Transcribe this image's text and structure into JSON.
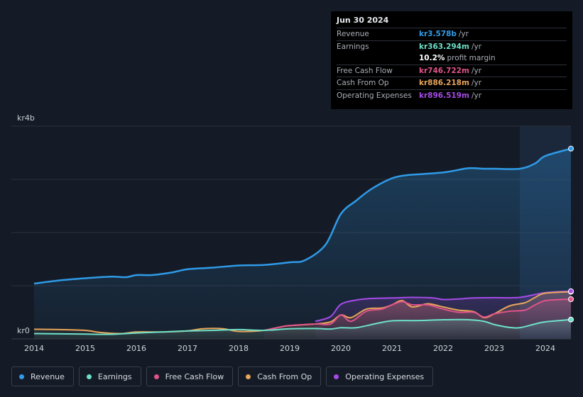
{
  "tooltip": {
    "date": "Jun 30 2024",
    "rows": [
      {
        "label": "Revenue",
        "value": "kr3.578b",
        "unit": "/yr",
        "color": "#2f9be8"
      },
      {
        "label": "Earnings",
        "value": "kr363.294m",
        "unit": "/yr",
        "color": "#6ee0c9"
      },
      {
        "label": "",
        "value": "10.2%",
        "unit": "profit margin",
        "color": "#ffffff"
      },
      {
        "label": "Free Cash Flow",
        "value": "kr746.722m",
        "unit": "/yr",
        "color": "#e0538a"
      },
      {
        "label": "Cash From Op",
        "value": "kr886.218m",
        "unit": "/yr",
        "color": "#e8a55a"
      },
      {
        "label": "Operating Expenses",
        "value": "kr896.519m",
        "unit": "/yr",
        "color": "#a64be8"
      }
    ]
  },
  "legend": [
    {
      "label": "Revenue",
      "color": "#2f9be8"
    },
    {
      "label": "Earnings",
      "color": "#6ee0c9"
    },
    {
      "label": "Free Cash Flow",
      "color": "#e0538a"
    },
    {
      "label": "Cash From Op",
      "color": "#e8a55a"
    },
    {
      "label": "Operating Expenses",
      "color": "#a64be8"
    }
  ],
  "chart_data": {
    "type": "line",
    "y_top_label": "kr4b",
    "y_bottom_label": "kr0",
    "ylim": [
      0,
      4000
    ],
    "xlim": [
      2014,
      2024.5
    ],
    "x_ticks": [
      "2014",
      "2015",
      "2016",
      "2017",
      "2018",
      "2019",
      "2020",
      "2021",
      "2022",
      "2023",
      "2024"
    ],
    "grid": true,
    "highlight_start": 2023.5,
    "series": [
      {
        "name": "Revenue",
        "color": "#2f9be8",
        "points": [
          [
            2014,
            1040
          ],
          [
            2014.5,
            1100
          ],
          [
            2015,
            1140
          ],
          [
            2015.5,
            1170
          ],
          [
            2015.8,
            1160
          ],
          [
            2016,
            1200
          ],
          [
            2016.3,
            1200
          ],
          [
            2016.7,
            1250
          ],
          [
            2017,
            1310
          ],
          [
            2017.5,
            1340
          ],
          [
            2018,
            1380
          ],
          [
            2018.5,
            1390
          ],
          [
            2019,
            1440
          ],
          [
            2019.3,
            1480
          ],
          [
            2019.7,
            1770
          ],
          [
            2020,
            2350
          ],
          [
            2020.3,
            2600
          ],
          [
            2020.6,
            2820
          ],
          [
            2021,
            3020
          ],
          [
            2021.3,
            3080
          ],
          [
            2021.6,
            3100
          ],
          [
            2022,
            3130
          ],
          [
            2022.2,
            3160
          ],
          [
            2022.5,
            3210
          ],
          [
            2022.8,
            3200
          ],
          [
            2023,
            3200
          ],
          [
            2023.5,
            3200
          ],
          [
            2023.8,
            3300
          ],
          [
            2024,
            3440
          ],
          [
            2024.5,
            3578
          ]
        ]
      },
      {
        "name": "Earnings",
        "color": "#6ee0c9",
        "points": [
          [
            2014,
            100
          ],
          [
            2014.5,
            95
          ],
          [
            2015,
            90
          ],
          [
            2015.5,
            85
          ],
          [
            2016,
            110
          ],
          [
            2016.5,
            130
          ],
          [
            2017,
            150
          ],
          [
            2017.5,
            160
          ],
          [
            2018,
            175
          ],
          [
            2018.5,
            160
          ],
          [
            2019,
            190
          ],
          [
            2019.5,
            195
          ],
          [
            2019.8,
            185
          ],
          [
            2020,
            210
          ],
          [
            2020.3,
            210
          ],
          [
            2020.7,
            290
          ],
          [
            2021,
            340
          ],
          [
            2021.5,
            345
          ],
          [
            2022,
            360
          ],
          [
            2022.5,
            360
          ],
          [
            2022.8,
            330
          ],
          [
            2023,
            270
          ],
          [
            2023.3,
            215
          ],
          [
            2023.5,
            210
          ],
          [
            2023.8,
            280
          ],
          [
            2024,
            320
          ],
          [
            2024.5,
            363
          ]
        ]
      },
      {
        "name": "Free Cash Flow",
        "color": "#e0538a",
        "start": 2018.5,
        "points": [
          [
            2018.5,
            160
          ],
          [
            2018.8,
            220
          ],
          [
            2019,
            250
          ],
          [
            2019.5,
            280
          ],
          [
            2019.8,
            280
          ],
          [
            2020,
            450
          ],
          [
            2020.2,
            330
          ],
          [
            2020.5,
            520
          ],
          [
            2020.8,
            560
          ],
          [
            2021,
            640
          ],
          [
            2021.2,
            700
          ],
          [
            2021.4,
            640
          ],
          [
            2021.7,
            640
          ],
          [
            2022,
            560
          ],
          [
            2022.3,
            500
          ],
          [
            2022.6,
            500
          ],
          [
            2022.8,
            410
          ],
          [
            2023,
            470
          ],
          [
            2023.3,
            520
          ],
          [
            2023.6,
            540
          ],
          [
            2023.8,
            640
          ],
          [
            2024,
            720
          ],
          [
            2024.3,
            740
          ],
          [
            2024.5,
            746
          ]
        ]
      },
      {
        "name": "Cash From Op",
        "color": "#e8a55a",
        "points": [
          [
            2014,
            180
          ],
          [
            2014.5,
            175
          ],
          [
            2015,
            160
          ],
          [
            2015.3,
            120
          ],
          [
            2015.7,
            100
          ],
          [
            2016,
            130
          ],
          [
            2016.5,
            130
          ],
          [
            2017,
            150
          ],
          [
            2017.3,
            190
          ],
          [
            2017.7,
            190
          ],
          [
            2018,
            140
          ],
          [
            2018.5,
            160
          ],
          [
            2018.8,
            220
          ],
          [
            2019,
            250
          ],
          [
            2019.5,
            280
          ],
          [
            2019.8,
            320
          ],
          [
            2020,
            450
          ],
          [
            2020.2,
            400
          ],
          [
            2020.5,
            560
          ],
          [
            2020.8,
            580
          ],
          [
            2021,
            640
          ],
          [
            2021.2,
            720
          ],
          [
            2021.4,
            600
          ],
          [
            2021.7,
            660
          ],
          [
            2022,
            600
          ],
          [
            2022.3,
            540
          ],
          [
            2022.6,
            510
          ],
          [
            2022.8,
            400
          ],
          [
            2023,
            470
          ],
          [
            2023.3,
            620
          ],
          [
            2023.6,
            680
          ],
          [
            2023.8,
            780
          ],
          [
            2024,
            860
          ],
          [
            2024.5,
            886
          ]
        ]
      },
      {
        "name": "Operating Expenses",
        "color": "#a64be8",
        "start": 2019.5,
        "points": [
          [
            2019.5,
            330
          ],
          [
            2019.8,
            420
          ],
          [
            2020,
            650
          ],
          [
            2020.3,
            730
          ],
          [
            2020.6,
            760
          ],
          [
            2021,
            770
          ],
          [
            2021.4,
            780
          ],
          [
            2021.8,
            770
          ],
          [
            2022,
            740
          ],
          [
            2022.3,
            750
          ],
          [
            2022.6,
            770
          ],
          [
            2023,
            775
          ],
          [
            2023.5,
            780
          ],
          [
            2024,
            870
          ],
          [
            2024.5,
            896
          ]
        ]
      }
    ]
  }
}
